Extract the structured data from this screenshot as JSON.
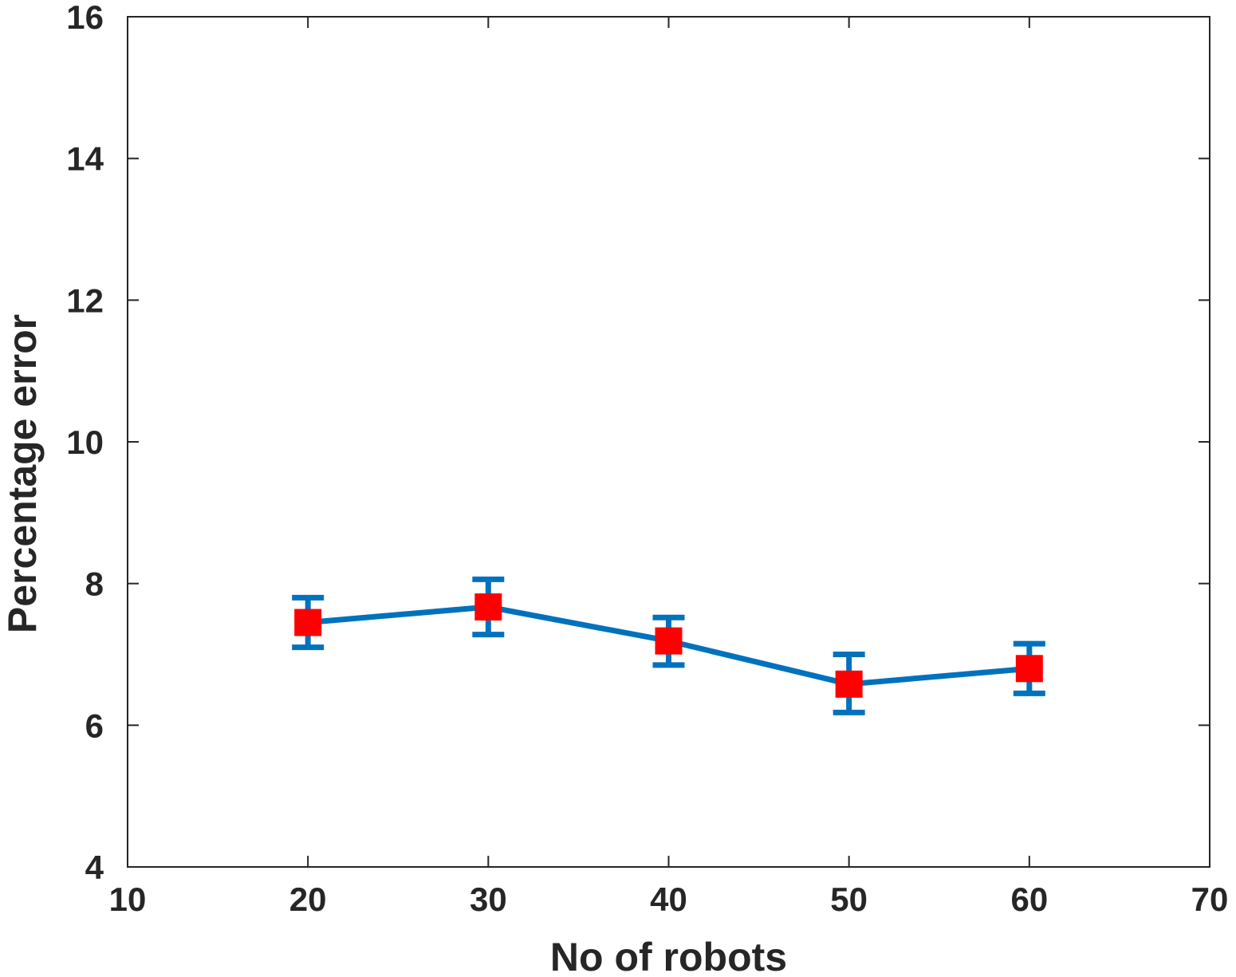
{
  "chart_data": {
    "type": "line",
    "title": "",
    "xlabel": "No of robots",
    "ylabel": "Percentage error",
    "xlim": [
      10,
      70
    ],
    "ylim": [
      4,
      16
    ],
    "xticks": [
      10,
      20,
      30,
      40,
      50,
      60,
      70
    ],
    "yticks": [
      4,
      6,
      8,
      10,
      12,
      14,
      16
    ],
    "grid": false,
    "legend": "none",
    "series": [
      {
        "x": [
          20,
          30,
          40,
          50,
          60
        ],
        "y": [
          7.45,
          7.67,
          7.19,
          6.58,
          6.8
        ],
        "error_low": [
          7.1,
          7.28,
          6.85,
          6.18,
          6.45
        ],
        "error_high": [
          7.8,
          8.06,
          7.52,
          7.0,
          7.15
        ]
      }
    ],
    "colors": {
      "line": "#0072BD",
      "marker": "#FF0000",
      "axis": "#262626"
    },
    "marker": "square"
  }
}
